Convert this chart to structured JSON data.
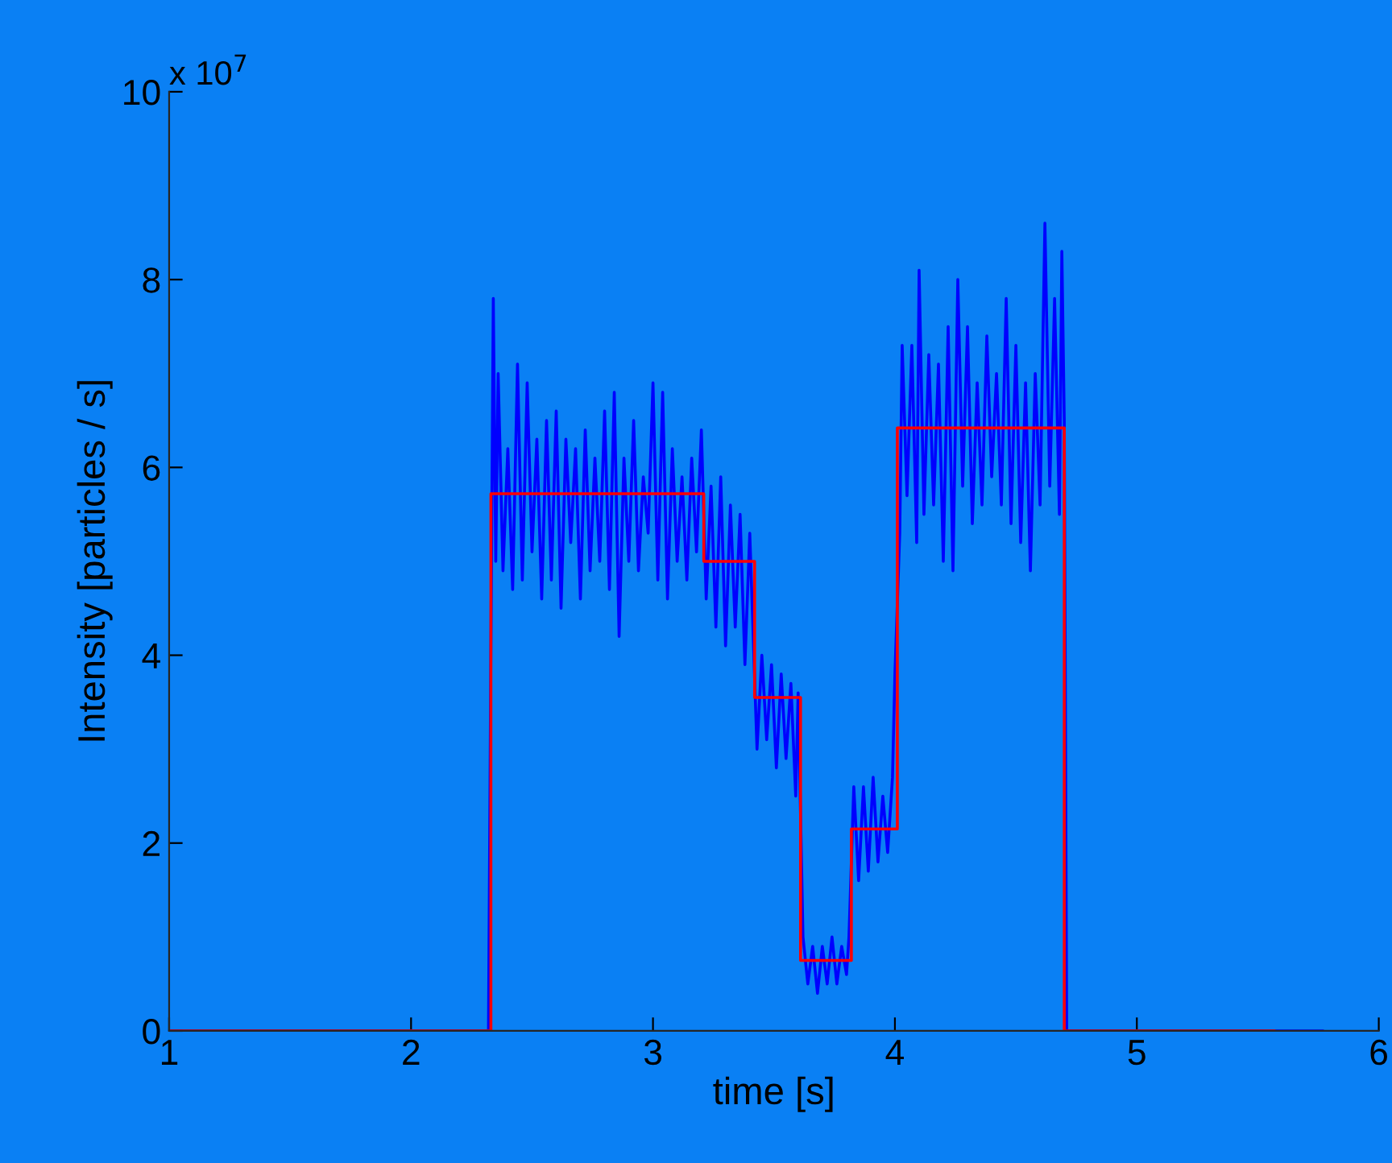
{
  "chart_data": {
    "type": "line",
    "xlabel": "time [s]",
    "ylabel": "Intensity [particles / s]",
    "annotations": [
      "x 10$^{7}$"
    ],
    "xlim": [
      1,
      6
    ],
    "xticks": [
      1,
      2,
      3,
      4,
      5,
      6
    ],
    "ylim": [
      0,
      10
    ],
    "yticks": [
      0,
      2,
      4,
      6,
      8,
      10
    ],
    "grid": false,
    "legend": false,
    "marker": "none",
    "line_style": "solid",
    "series": [
      {
        "color": "#0000ff",
        "x": [
          1,
          2.32,
          2.33,
          2.34,
          2.35,
          2.36,
          2.38,
          2.4,
          2.42,
          2.44,
          2.46,
          2.48,
          2.5,
          2.52,
          2.54,
          2.56,
          2.58,
          2.6,
          2.62,
          2.64,
          2.66,
          2.68,
          2.7,
          2.72,
          2.74,
          2.76,
          2.78,
          2.8,
          2.82,
          2.84,
          2.86,
          2.88,
          2.9,
          2.92,
          2.94,
          2.96,
          2.98,
          3.0,
          3.02,
          3.04,
          3.06,
          3.08,
          3.1,
          3.12,
          3.14,
          3.16,
          3.18,
          3.2,
          3.22,
          3.24,
          3.26,
          3.28,
          3.3,
          3.32,
          3.34,
          3.36,
          3.38,
          3.4,
          3.43,
          3.45,
          3.47,
          3.49,
          3.51,
          3.53,
          3.55,
          3.57,
          3.59,
          3.6,
          3.62,
          3.64,
          3.66,
          3.68,
          3.7,
          3.72,
          3.74,
          3.76,
          3.78,
          3.8,
          3.81,
          3.83,
          3.85,
          3.87,
          3.89,
          3.91,
          3.93,
          3.95,
          3.97,
          3.99,
          4.0,
          4.02,
          4.03,
          4.05,
          4.07,
          4.09,
          4.1,
          4.12,
          4.14,
          4.16,
          4.18,
          4.2,
          4.22,
          4.24,
          4.26,
          4.28,
          4.3,
          4.32,
          4.34,
          4.36,
          4.38,
          4.4,
          4.42,
          4.44,
          4.46,
          4.48,
          4.5,
          4.52,
          4.54,
          4.56,
          4.58,
          4.6,
          4.62,
          4.64,
          4.66,
          4.68,
          4.69,
          4.7,
          4.71,
          5.77
        ],
        "values": [
          0,
          0,
          4.1,
          7.8,
          5.0,
          7.0,
          4.9,
          6.2,
          4.7,
          7.1,
          4.8,
          6.9,
          5.1,
          6.3,
          4.6,
          6.5,
          4.8,
          6.6,
          4.5,
          6.3,
          5.2,
          6.2,
          4.6,
          6.4,
          4.9,
          6.1,
          5.0,
          6.6,
          4.7,
          6.8,
          4.2,
          6.1,
          5.0,
          6.5,
          4.9,
          5.9,
          5.3,
          6.9,
          4.8,
          6.8,
          4.6,
          6.2,
          5.0,
          5.9,
          4.8,
          6.1,
          5.1,
          6.4,
          4.6,
          5.8,
          4.3,
          5.9,
          4.1,
          5.6,
          4.3,
          5.5,
          3.9,
          5.3,
          3.0,
          4.0,
          3.1,
          3.9,
          2.8,
          3.8,
          2.9,
          3.7,
          2.5,
          3.6,
          1.0,
          0.5,
          0.9,
          0.4,
          0.9,
          0.5,
          1.0,
          0.5,
          0.9,
          0.6,
          1.0,
          2.6,
          1.6,
          2.6,
          1.7,
          2.7,
          1.8,
          2.5,
          1.9,
          2.7,
          3.8,
          5.3,
          7.3,
          5.7,
          7.3,
          5.2,
          8.1,
          5.5,
          7.2,
          5.6,
          7.1,
          5.0,
          7.5,
          4.9,
          8.0,
          5.8,
          7.5,
          5.4,
          6.9,
          5.6,
          7.4,
          5.9,
          7.0,
          5.6,
          7.8,
          5.4,
          7.3,
          5.2,
          6.9,
          4.9,
          7.0,
          5.6,
          8.6,
          5.8,
          7.8,
          5.5,
          8.3,
          6.5,
          0,
          0
        ]
      },
      {
        "type": "step",
        "color": "#ff0000",
        "x": [
          1,
          2.33,
          3.21,
          3.42,
          3.61,
          3.82,
          4.01,
          4.7,
          5.57
        ],
        "values": [
          0,
          5.72,
          5.0,
          3.55,
          0.75,
          2.15,
          6.42,
          0,
          0
        ]
      }
    ]
  }
}
